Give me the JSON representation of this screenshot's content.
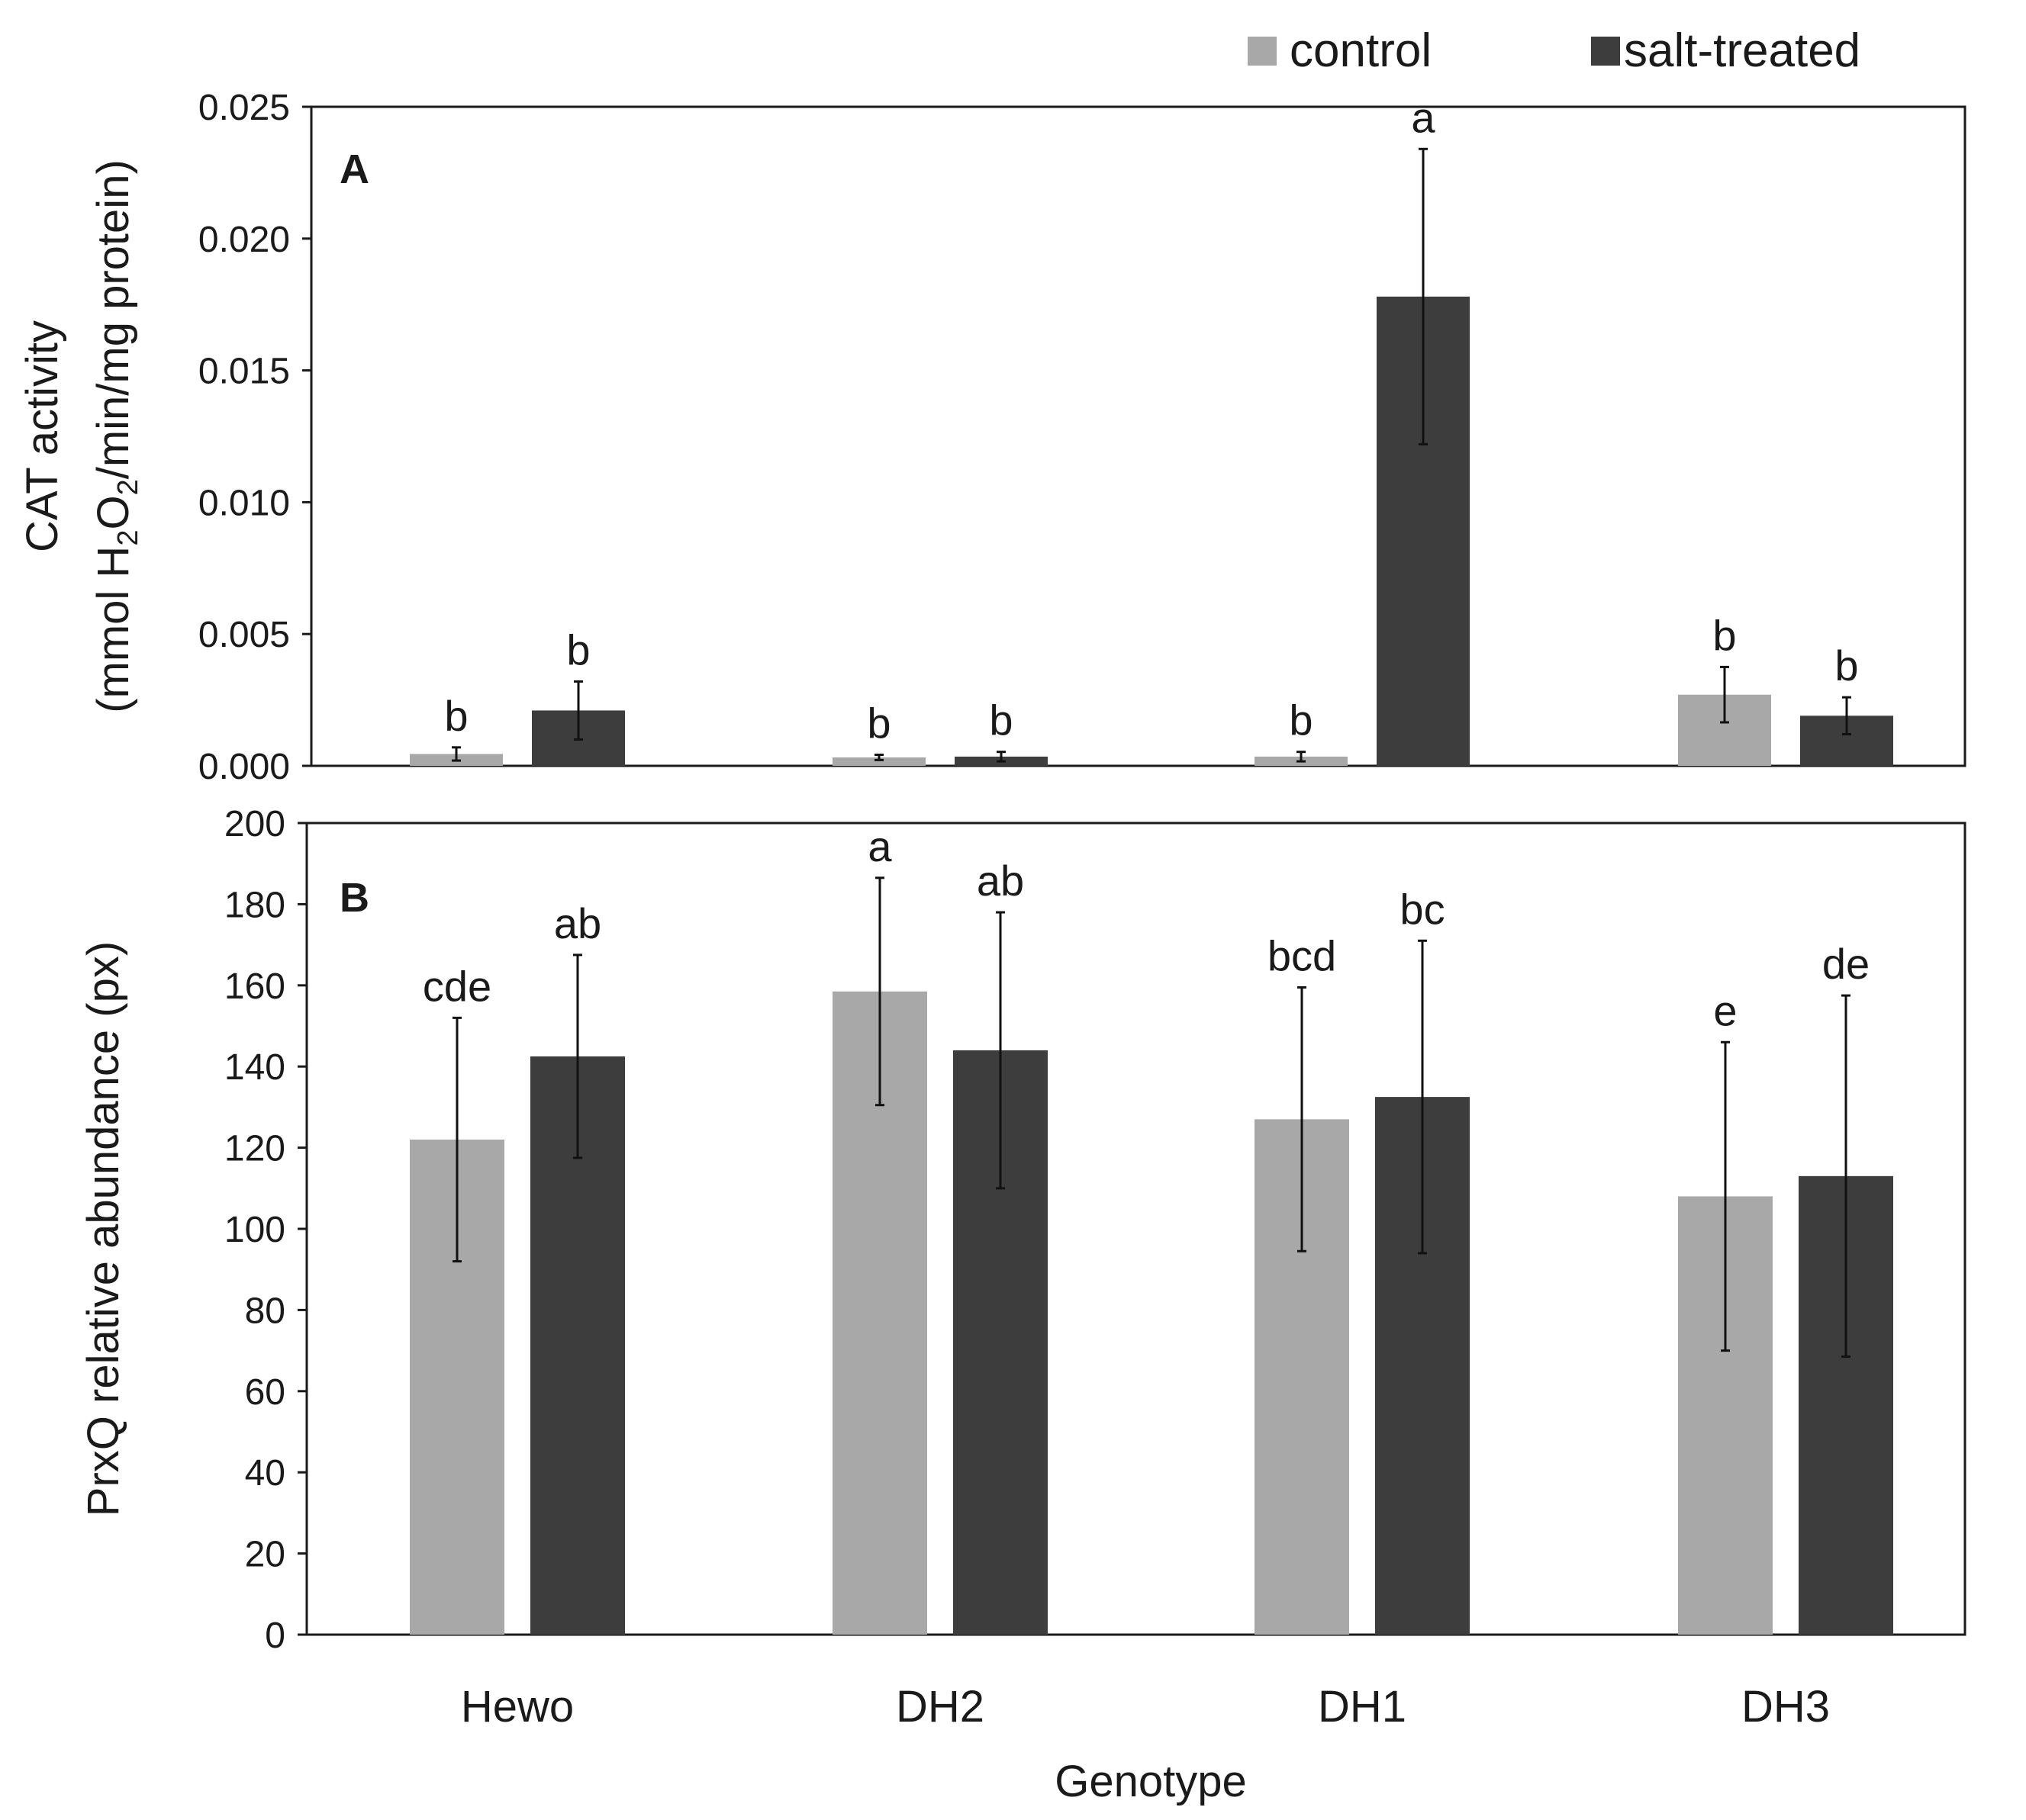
{
  "chart_data": [
    {
      "type": "bar",
      "panel_label": "A",
      "categories": [
        "Hewo",
        "DH2",
        "DH1",
        "DH3"
      ],
      "series": [
        {
          "name": "control",
          "values": [
            0.00045,
            0.00032,
            0.00035,
            0.0027
          ],
          "errors": [
            0.00025,
            0.0001,
            0.00018,
            0.00105
          ],
          "letters": [
            "b",
            "b",
            "b",
            "b"
          ]
        },
        {
          "name": "salt-treated",
          "values": [
            0.0021,
            0.00035,
            0.0178,
            0.0019
          ],
          "errors": [
            0.0011,
            0.00018,
            0.0056,
            0.0007
          ],
          "letters": [
            "b",
            "b",
            "a",
            "b"
          ]
        }
      ],
      "ylabel_line1": "CAT activity",
      "ylabel_line2": {
        "pre": "(mmol H",
        "sub1": "2",
        "mid": "O",
        "sub2": "2",
        "post": "/min/mg protein)"
      },
      "ylim": [
        0,
        0.025
      ],
      "yticks": [
        "0.000",
        "0.005",
        "0.010",
        "0.015",
        "0.020",
        "0.025"
      ]
    },
    {
      "type": "bar",
      "panel_label": "B",
      "categories": [
        "Hewo",
        "DH2",
        "DH1",
        "DH3"
      ],
      "series": [
        {
          "name": "control",
          "values": [
            122,
            158.5,
            127,
            108
          ],
          "errors": [
            30,
            28,
            32.5,
            38
          ],
          "letters": [
            "cde",
            "a",
            "bcd",
            "e"
          ]
        },
        {
          "name": "salt-treated",
          "values": [
            142.5,
            144,
            132.5,
            113
          ],
          "errors": [
            25,
            34,
            38.5,
            44.5
          ],
          "letters": [
            "ab",
            "ab",
            "bc",
            "de"
          ]
        }
      ],
      "ylabel": "PrxQ relative abundance (px)",
      "xlabel": "Genotype",
      "ylim": [
        0,
        200
      ],
      "yticks": [
        "0",
        "20",
        "40",
        "60",
        "80",
        "100",
        "120",
        "140",
        "160",
        "180",
        "200"
      ]
    }
  ],
  "legend": [
    {
      "label": "control",
      "color": "#a8a8a8"
    },
    {
      "label": "salt-treated",
      "color": "#3d3d3d"
    }
  ],
  "colors": {
    "control": "#a8a8a8",
    "salt": "#3d3d3d"
  }
}
